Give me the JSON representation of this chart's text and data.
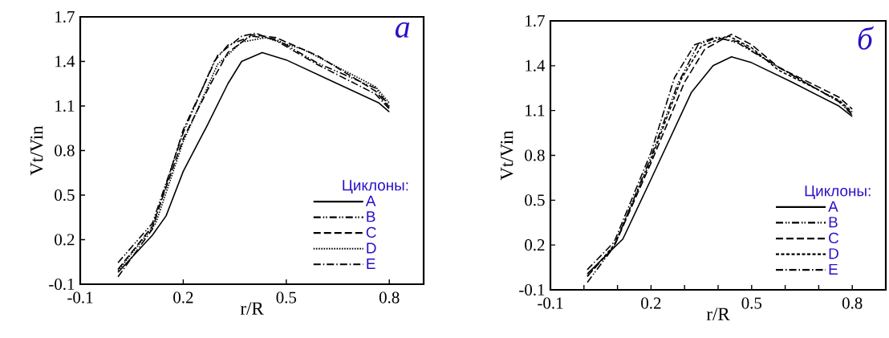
{
  "chart_data": [
    {
      "type": "line",
      "xlabel": "r/R",
      "ylabel": "Vt/Vin",
      "legend_title": "Циклоны:",
      "legend": "bottom right",
      "annotations": [
        "a"
      ],
      "xlim": [
        -0.1,
        0.9
      ],
      "ylim": [
        -0.1,
        1.7
      ],
      "xticks": [
        -0.1,
        0.2,
        0.5,
        0.8
      ],
      "yticks": [
        -0.1,
        0.2,
        0.5,
        0.8,
        1.1,
        1.4,
        1.7
      ],
      "series": [
        {
          "name": "A",
          "color": "#000000",
          "line_style": "solid",
          "x": [
            0.01,
            0.11,
            0.15,
            0.2,
            0.27,
            0.33,
            0.37,
            0.43,
            0.5,
            0.63,
            0.77,
            0.8
          ],
          "values": [
            -0.02,
            0.23,
            0.36,
            0.66,
            0.97,
            1.25,
            1.4,
            1.46,
            1.41,
            1.27,
            1.12,
            1.06
          ]
        },
        {
          "name": "B",
          "color": "#000000",
          "line_style": "dashdotdot",
          "x": [
            0.01,
            0.11,
            0.2,
            0.29,
            0.33,
            0.4,
            0.47,
            0.59,
            0.76,
            0.8
          ],
          "values": [
            0.045,
            0.31,
            0.92,
            1.4,
            1.51,
            1.57,
            1.55,
            1.39,
            1.22,
            1.1
          ]
        },
        {
          "name": "C",
          "color": "#000000",
          "line_style": "dashed",
          "x": [
            0.01,
            0.11,
            0.2,
            0.28,
            0.33,
            0.4,
            0.47,
            0.59,
            0.76,
            0.8
          ],
          "values": [
            0.0,
            0.29,
            0.88,
            1.25,
            1.46,
            1.58,
            1.56,
            1.44,
            1.2,
            1.09
          ]
        },
        {
          "name": "D",
          "color": "#000000",
          "line_style": "dotted",
          "x": [
            0.01,
            0.12,
            0.2,
            0.3,
            0.37,
            0.44,
            0.55,
            0.76,
            0.8
          ],
          "values": [
            -0.01,
            0.31,
            0.86,
            1.38,
            1.53,
            1.56,
            1.48,
            1.23,
            1.12
          ]
        },
        {
          "name": "E",
          "color": "#000000",
          "line_style": "dashdot",
          "x": [
            0.01,
            0.11,
            0.2,
            0.3,
            0.37,
            0.41,
            0.47,
            0.59,
            0.76,
            0.8
          ],
          "values": [
            -0.05,
            0.27,
            0.94,
            1.44,
            1.57,
            1.59,
            1.54,
            1.38,
            1.18,
            1.08
          ]
        }
      ]
    },
    {
      "type": "line",
      "xlabel": "r/R",
      "ylabel": "Vt/Vin",
      "legend_title": "Циклоны:",
      "legend": "bottom right",
      "annotations": [
        "б"
      ],
      "xlim": [
        -0.1,
        0.9
      ],
      "ylim": [
        -0.1,
        1.7
      ],
      "xticks": [
        -0.1,
        {
          "value": 0.0,
          "label": null
        },
        {
          "value": 0.1,
          "label": null
        },
        0.2,
        {
          "value": 0.3,
          "label": null
        },
        {
          "value": 0.4,
          "label": null
        },
        0.5,
        {
          "value": 0.6,
          "label": null
        },
        {
          "value": 0.7,
          "label": null
        },
        0.8
      ],
      "yticks": [
        -0.1,
        0.2,
        0.5,
        0.8,
        1.1,
        1.4,
        1.7
      ],
      "series": [
        {
          "name": "A",
          "color": "#000000",
          "line_style": "solid",
          "x": [
            0.01,
            0.116,
            0.2,
            0.32,
            0.385,
            0.44,
            0.5,
            0.62,
            0.76,
            0.8
          ],
          "values": [
            0.007,
            0.24,
            0.64,
            1.22,
            1.4,
            1.46,
            1.42,
            1.29,
            1.13,
            1.06
          ]
        },
        {
          "name": "B",
          "color": "#000000",
          "line_style": "dashdotdot",
          "x": [
            0.01,
            0.09,
            0.2,
            0.28,
            0.34,
            0.4,
            0.46,
            0.58,
            0.76,
            0.8
          ],
          "values": [
            -0.05,
            0.19,
            0.79,
            1.28,
            1.54,
            1.59,
            1.55,
            1.39,
            1.16,
            1.07
          ]
        },
        {
          "name": "C",
          "color": "#000000",
          "line_style": "dashed",
          "x": [
            0.01,
            0.09,
            0.2,
            0.3,
            0.36,
            0.44,
            0.5,
            0.58,
            0.76,
            0.8
          ],
          "values": [
            -0.01,
            0.19,
            0.75,
            1.29,
            1.51,
            1.61,
            1.54,
            1.39,
            1.19,
            1.11
          ]
        },
        {
          "name": "D",
          "color": "#000000",
          "line_style": "densely dashed",
          "x": [
            0.01,
            0.09,
            0.2,
            0.29,
            0.35,
            0.43,
            0.5,
            0.58,
            0.76,
            0.8
          ],
          "values": [
            -0.01,
            0.2,
            0.77,
            1.31,
            1.53,
            1.6,
            1.52,
            1.37,
            1.17,
            1.09
          ]
        },
        {
          "name": "E",
          "color": "#000000",
          "line_style": "dashdot",
          "x": [
            0.01,
            0.09,
            0.2,
            0.27,
            0.33,
            0.39,
            0.46,
            0.58,
            0.76,
            0.8
          ],
          "values": [
            0.035,
            0.22,
            0.82,
            1.32,
            1.54,
            1.59,
            1.56,
            1.39,
            1.16,
            1.08
          ]
        }
      ]
    }
  ]
}
